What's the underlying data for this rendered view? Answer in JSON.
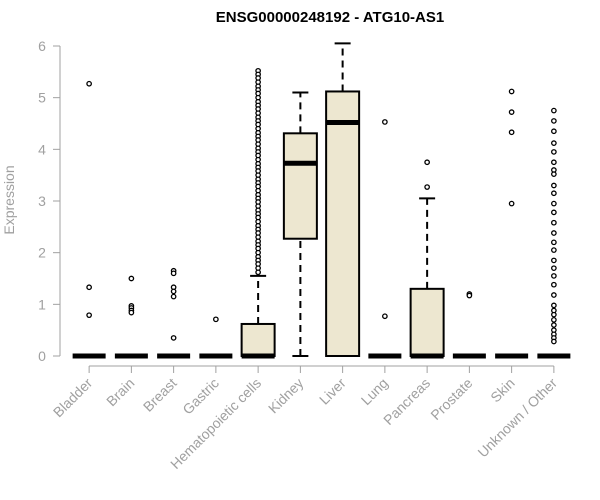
{
  "chart_data": {
    "type": "boxplot",
    "title": "ENSG00000248192 - ATG10-AS1",
    "xlabel": "",
    "ylabel": "Expression",
    "ylim": [
      0,
      6
    ],
    "yticks": [
      0,
      1,
      2,
      3,
      4,
      5,
      6
    ],
    "grid": false,
    "colors": {
      "box_fill": "#ede7d0",
      "box_stroke": "#000000",
      "axis": "#a0a0a0",
      "text": "#a0a0a0"
    },
    "categories": [
      "Bladder",
      "Brain",
      "Breast",
      "Gastric",
      "Hematopoietic cells",
      "Kidney",
      "Liver",
      "Lung",
      "Pancreas",
      "Prostate",
      "Skin",
      "Unknown / Other"
    ],
    "boxes": [
      {
        "label": "Bladder",
        "min": 0,
        "q1": 0,
        "median": 0,
        "q3": 0,
        "max": 0,
        "outliers": [
          5.27,
          1.33,
          0.79
        ]
      },
      {
        "label": "Brain",
        "min": 0,
        "q1": 0,
        "median": 0,
        "q3": 0,
        "max": 0,
        "outliers": [
          1.5,
          0.97,
          0.93,
          0.88,
          0.84
        ]
      },
      {
        "label": "Breast",
        "min": 0,
        "q1": 0,
        "median": 0,
        "q3": 0,
        "max": 0,
        "outliers": [
          1.65,
          1.6,
          1.33,
          1.25,
          1.15,
          0.35
        ]
      },
      {
        "label": "Gastric",
        "min": 0,
        "q1": 0,
        "median": 0,
        "q3": 0,
        "max": 0,
        "outliers": [
          0.71
        ]
      },
      {
        "label": "Hematopoietic cells",
        "min": 0,
        "q1": 0,
        "median": 0,
        "q3": 0.62,
        "max": 1.55,
        "outliers": [
          5.52,
          5.45,
          5.38,
          5.3,
          5.22,
          5.15,
          5.08,
          5.0,
          4.92,
          4.85,
          4.78,
          4.7,
          4.62,
          4.55,
          4.48,
          4.4,
          4.32,
          4.25,
          4.18,
          4.1,
          4.02,
          3.95,
          3.88,
          3.8,
          3.72,
          3.65,
          3.58,
          3.5,
          3.42,
          3.35,
          3.28,
          3.2,
          3.12,
          3.05,
          2.98,
          2.9,
          2.82,
          2.75,
          2.68,
          2.6,
          2.52,
          2.45,
          2.38,
          2.3,
          2.22,
          2.15,
          2.08,
          2.0,
          1.92,
          1.85,
          1.78,
          1.7,
          1.62
        ]
      },
      {
        "label": "Kidney",
        "min": 0,
        "q1": 2.27,
        "median": 3.73,
        "q3": 4.31,
        "max": 5.1,
        "outliers": []
      },
      {
        "label": "Liver",
        "min": 0,
        "q1": 0,
        "median": 4.52,
        "q3": 5.12,
        "max": 6.05,
        "outliers": []
      },
      {
        "label": "Lung",
        "min": 0,
        "q1": 0,
        "median": 0,
        "q3": 0,
        "max": 0,
        "outliers": [
          4.53,
          0.77
        ]
      },
      {
        "label": "Pancreas",
        "min": 0,
        "q1": 0,
        "median": 0,
        "q3": 1.3,
        "max": 3.05,
        "outliers": [
          3.75,
          3.27
        ]
      },
      {
        "label": "Prostate",
        "min": 0,
        "q1": 0,
        "median": 0,
        "q3": 0,
        "max": 0,
        "outliers": [
          1.2,
          1.17
        ]
      },
      {
        "label": "Skin",
        "min": 0,
        "q1": 0,
        "median": 0,
        "q3": 0,
        "max": 0,
        "outliers": [
          5.12,
          4.72,
          4.33,
          2.95
        ]
      },
      {
        "label": "Unknown / Other",
        "min": 0,
        "q1": 0,
        "median": 0,
        "q3": 0,
        "max": 0,
        "outliers": [
          4.75,
          4.55,
          4.35,
          4.12,
          3.95,
          3.75,
          3.6,
          3.52,
          3.3,
          3.15,
          2.95,
          2.78,
          2.58,
          2.38,
          2.2,
          2.05,
          1.85,
          1.7,
          1.55,
          1.38,
          1.18,
          0.98,
          0.88,
          0.8,
          0.7,
          0.6,
          0.5,
          0.42,
          0.35,
          0.28
        ]
      }
    ]
  }
}
